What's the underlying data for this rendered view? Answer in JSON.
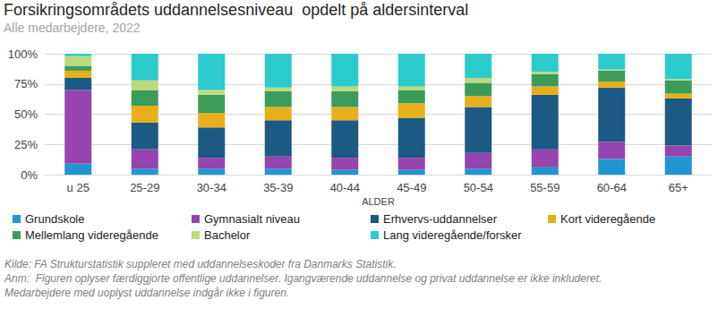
{
  "chart_data": {
    "type": "bar",
    "title": "Forsikringsområdets uddannelsesniveau  opdelt på aldersinterval",
    "subtitle": "Alle medarbejdere, 2022",
    "x_label": "ALDER",
    "categories": [
      "u 25",
      "25-29",
      "30-34",
      "35-39",
      "40-44",
      "45-49",
      "50-54",
      "55-59",
      "60-64",
      "65+"
    ],
    "series": [
      {
        "name": "Grundskole",
        "color": "#2196d3",
        "values": [
          9,
          5,
          5,
          5,
          4,
          4,
          5,
          6,
          13,
          15
        ]
      },
      {
        "name": "Gymnasialt niveau",
        "color": "#9544b0",
        "values": [
          61,
          16,
          9,
          10,
          10,
          10,
          13,
          15,
          14,
          9
        ]
      },
      {
        "name": "Erhvervs-uddannelser",
        "color": "#1b5a82",
        "values": [
          10,
          22,
          25,
          30,
          31,
          33,
          38,
          45,
          45,
          39
        ]
      },
      {
        "name": "Kort videregående",
        "color": "#e9ae1b",
        "values": [
          6,
          14,
          12,
          11,
          11,
          12,
          9,
          7,
          5,
          4
        ]
      },
      {
        "name": "Mellemlang videregående",
        "color": "#3b9c5a",
        "values": [
          4,
          13,
          15,
          13,
          13,
          11,
          11,
          10,
          9,
          11
        ]
      },
      {
        "name": "Bachelor",
        "color": "#bcd97c",
        "values": [
          8,
          8,
          4,
          3,
          4,
          3,
          4,
          2,
          1,
          1
        ]
      },
      {
        "name": "Lang videregående/forsker",
        "color": "#2ccbcb",
        "values": [
          2,
          22,
          30,
          28,
          27,
          27,
          20,
          15,
          13,
          21
        ]
      }
    ],
    "ylim": [
      0,
      100
    ],
    "yticks": [
      {
        "value": 0,
        "label": "0%"
      },
      {
        "value": 25,
        "label": "25%"
      },
      {
        "value": 50,
        "label": "50%"
      },
      {
        "value": 75,
        "label": "75%"
      },
      {
        "value": 100,
        "label": "100%"
      }
    ],
    "stacked": true,
    "grid": true,
    "legend": "bottom",
    "annotations": [
      "Kilde: FA Strukturstatistik suppleret med uddannelseskoder fra Danmarks Statistik.",
      "Anm:  Figuren oplyser færdiggjorte offentlige uddannelser. Igangværende uddannelse og privat uddannelse er ikke inkluderet.",
      "Medarbejdere med uoplyst uddannelse indgår ikke i figuren."
    ]
  }
}
